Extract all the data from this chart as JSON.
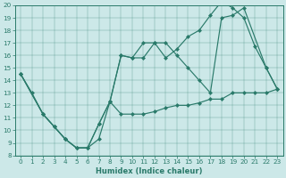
{
  "xlabel": "Humidex (Indice chaleur)",
  "bg_color": "#cce8e8",
  "line_color": "#2a7a6a",
  "xlim": [
    -0.5,
    23.5
  ],
  "ylim": [
    8,
    20
  ],
  "xticks": [
    0,
    1,
    2,
    3,
    4,
    5,
    6,
    7,
    8,
    9,
    10,
    11,
    12,
    13,
    14,
    15,
    16,
    17,
    18,
    19,
    20,
    21,
    22,
    23
  ],
  "yticks": [
    8,
    9,
    10,
    11,
    12,
    13,
    14,
    15,
    16,
    17,
    18,
    19,
    20
  ],
  "line1_x": [
    0,
    1,
    2,
    3,
    4,
    5,
    6,
    7,
    8,
    9,
    10,
    11,
    12,
    13,
    14,
    15,
    16,
    17,
    18,
    19,
    20,
    21,
    22,
    23
  ],
  "line1_y": [
    14.5,
    13.0,
    11.3,
    10.3,
    9.3,
    8.6,
    8.6,
    9.3,
    12.3,
    11.3,
    11.3,
    11.3,
    11.5,
    11.8,
    12.0,
    12.0,
    12.2,
    12.5,
    12.5,
    13.0,
    13.0,
    13.0,
    13.0,
    13.3
  ],
  "line2_x": [
    0,
    2,
    3,
    4,
    5,
    6,
    7,
    8,
    9,
    10,
    11,
    12,
    13,
    14,
    15,
    16,
    17,
    18,
    19,
    20,
    22,
    23
  ],
  "line2_y": [
    14.5,
    11.3,
    10.3,
    9.3,
    8.6,
    8.6,
    10.5,
    12.3,
    16.0,
    15.8,
    15.8,
    17.0,
    17.0,
    16.0,
    15.0,
    14.0,
    13.0,
    19.0,
    19.2,
    19.8,
    15.0,
    13.3
  ],
  "line3_x": [
    0,
    2,
    3,
    4,
    5,
    6,
    7,
    8,
    9,
    10,
    11,
    12,
    13,
    14,
    15,
    16,
    17,
    18,
    19,
    20,
    21,
    22,
    23
  ],
  "line3_y": [
    14.5,
    11.3,
    10.3,
    9.3,
    8.6,
    8.6,
    10.5,
    12.3,
    16.0,
    15.8,
    17.0,
    17.0,
    15.8,
    16.5,
    17.5,
    18.0,
    19.2,
    20.3,
    19.8,
    19.0,
    16.7,
    15.0,
    13.3
  ]
}
